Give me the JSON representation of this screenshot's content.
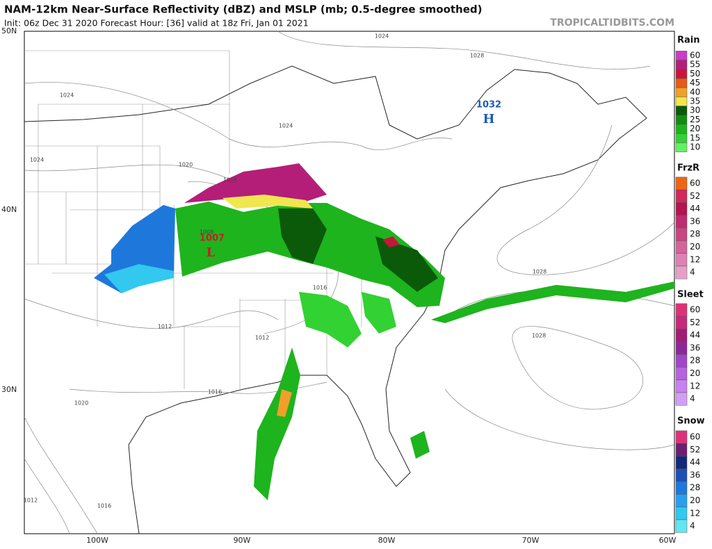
{
  "header": {
    "title": "NAM-12km Near-Surface Reflectivity (dBZ) and MSLP (mb; 0.5-degree smoothed)",
    "subtitle": "Init: 06z Dec 31 2020   Forecast Hour: [36]   valid at 18z Fri, Jan 01 2021",
    "source": "TROPICALTIDBITS.COM"
  },
  "map": {
    "lat_labels": [
      "50N",
      "40N",
      "30N"
    ],
    "lon_labels": [
      "100W",
      "90W",
      "80W",
      "70W",
      "60W"
    ],
    "contour_labels": [
      "1024",
      "1028",
      "1024",
      "1024",
      "1024",
      "1020",
      "1016",
      "1008",
      "1028",
      "1016",
      "1012",
      "1012",
      "1028",
      "1016",
      "1020",
      "1012",
      "1016"
    ],
    "high": {
      "pressure": "1032",
      "label": "H"
    },
    "low": {
      "pressure": "1007",
      "label": "L"
    }
  },
  "legend": [
    {
      "name": "Rain",
      "ticks": [
        "60",
        "55",
        "50",
        "45",
        "40",
        "35",
        "30",
        "25",
        "20",
        "15",
        "10"
      ],
      "colors": [
        "#c83cc8",
        "#b41e78",
        "#c8143c",
        "#e65a14",
        "#f0a028",
        "#f0e650",
        "#0a5a0a",
        "#148c14",
        "#1eb41e",
        "#32d232",
        "#64f064"
      ]
    },
    {
      "name": "FrzR",
      "ticks": [
        "60",
        "52",
        "44",
        "36",
        "28",
        "20",
        "12",
        "4"
      ],
      "colors": [
        "#f06414",
        "#d2285a",
        "#b41450",
        "#be2d6e",
        "#c84682",
        "#d2649b",
        "#dc82b4",
        "#e6a0c8"
      ]
    },
    {
      "name": "Sleet",
      "ticks": [
        "60",
        "52",
        "44",
        "36",
        "28",
        "20",
        "12",
        "4"
      ],
      "colors": [
        "#dc3278",
        "#c8287a",
        "#a01e6e",
        "#8c2896",
        "#a046c8",
        "#b464dc",
        "#c882f0",
        "#d2a0f0"
      ]
    },
    {
      "name": "Snow",
      "ticks": [
        "60",
        "52",
        "44",
        "36",
        "28",
        "20",
        "12",
        "4"
      ],
      "colors": [
        "#dc3278",
        "#6e1e6e",
        "#14287a",
        "#1e50b4",
        "#1e78dc",
        "#28a0f0",
        "#32c8f0",
        "#64e6f0"
      ]
    }
  ]
}
